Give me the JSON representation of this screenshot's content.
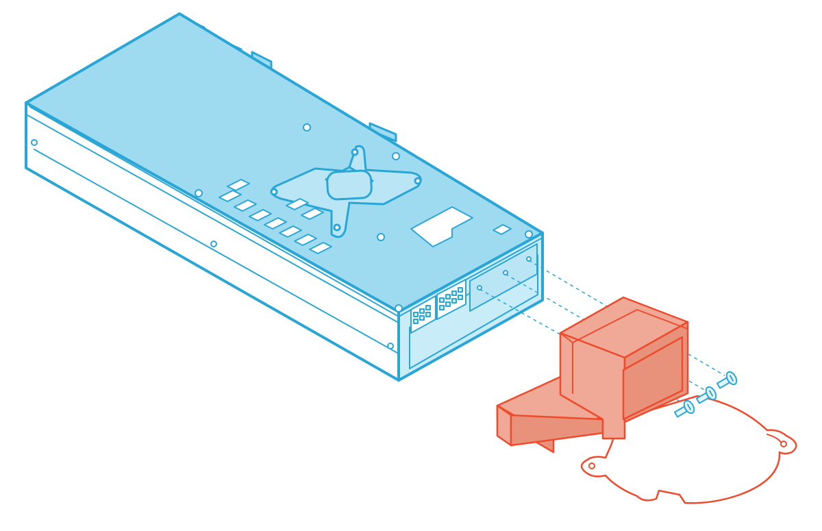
{
  "diagram": {
    "style": "isometric-exploded-line-art",
    "colors": {
      "background": "#ffffff",
      "card_stroke": "#2aa6d6",
      "card_top_fill": "#9fdbf0",
      "card_side_fill": "#ffffff",
      "card_end_fill": "#c8ecf8",
      "card_plate_fill": "#b9e5f4",
      "duct_stroke": "#ee4a2c",
      "duct_fill": "#f0a996",
      "duct_fill_dark": "#e8927c",
      "duct_plate_fill": "#ffffff",
      "screw_stroke": "#2aa6d6",
      "screw_fill": "#e4f5fb",
      "guide_stroke": "#2aa6d6"
    },
    "parts": [
      {
        "id": "gpu-card",
        "icon": "graphics-card-icon"
      },
      {
        "id": "coolant-block-mount",
        "icon": "cross-bracket-icon"
      },
      {
        "id": "power-connectors",
        "icon": "eight-pin-connector-icon",
        "count": 2
      },
      {
        "id": "blower-duct",
        "icon": "blower-duct-icon"
      },
      {
        "id": "blower-base-plate",
        "icon": "fan-plate-icon"
      },
      {
        "id": "mounting-screws",
        "icon": "screw-icon",
        "count": 3
      }
    ]
  }
}
